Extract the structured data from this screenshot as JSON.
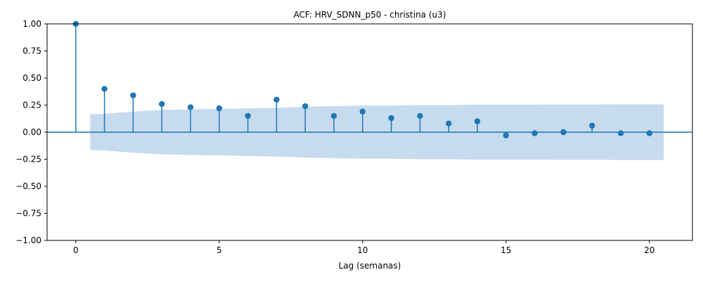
{
  "chart_data": {
    "type": "stem",
    "title": "ACF: HRV_SDNN_p50 - christina (u3)",
    "xlabel": "Lag (semanas)",
    "ylabel": "",
    "xlim": [
      -1,
      21.5
    ],
    "ylim": [
      -1.0,
      1.0
    ],
    "xticks": [
      0,
      5,
      10,
      15,
      20
    ],
    "yticks": [
      -1.0,
      -0.75,
      -0.5,
      -0.25,
      0.0,
      0.25,
      0.5,
      0.75,
      1.0
    ],
    "xtick_labels": [
      "0",
      "5",
      "10",
      "15",
      "20"
    ],
    "ytick_labels": [
      "−1.00",
      "−0.75",
      "−0.50",
      "−0.25",
      "0.00",
      "0.25",
      "0.50",
      "0.75",
      "1.00"
    ],
    "grid": false,
    "series": [
      {
        "lags": [
          0,
          1,
          2,
          3,
          4,
          5,
          6,
          7,
          8,
          9,
          10,
          11,
          12,
          13,
          14,
          15,
          16,
          17,
          18,
          19,
          20
        ],
        "values": [
          1.0,
          0.4,
          0.34,
          0.26,
          0.23,
          0.22,
          0.15,
          0.3,
          0.24,
          0.15,
          0.19,
          0.13,
          0.15,
          0.08,
          0.1,
          -0.03,
          -0.01,
          0.0,
          0.06,
          -0.01,
          -0.01
        ]
      }
    ],
    "confidence_band": {
      "lags": [
        0.5,
        1,
        2,
        3,
        4,
        5,
        6,
        7,
        8,
        9,
        10,
        11,
        12,
        13,
        14,
        15,
        16,
        17,
        18,
        19,
        20,
        20.5
      ],
      "upper": [
        0.165,
        0.17,
        0.19,
        0.205,
        0.21,
        0.215,
        0.22,
        0.225,
        0.235,
        0.24,
        0.245,
        0.245,
        0.25,
        0.25,
        0.255,
        0.255,
        0.255,
        0.256,
        0.256,
        0.257,
        0.257,
        0.257
      ]
    },
    "colors": {
      "stem": "#1f77b4",
      "band": "#c6dbee",
      "axis": "#000000"
    }
  }
}
